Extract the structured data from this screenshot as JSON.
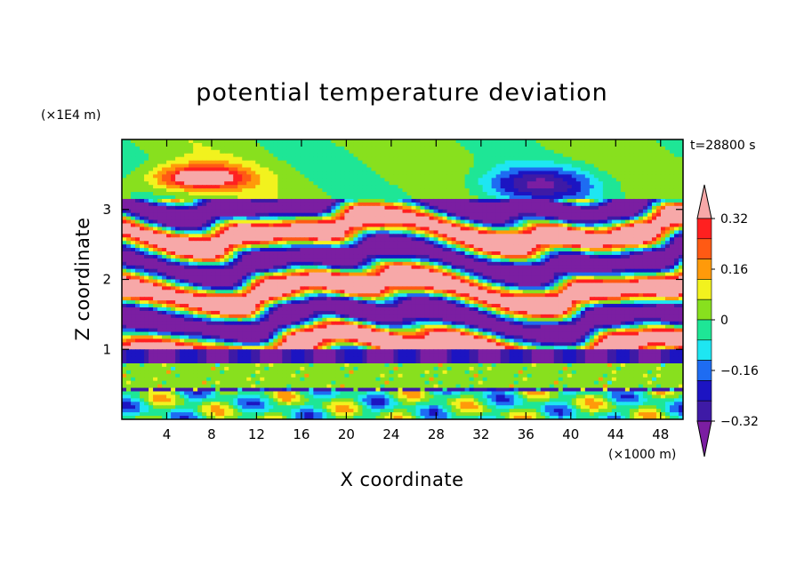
{
  "chart_data": {
    "type": "heatmap",
    "title": "potential temperature deviation",
    "time_label": "t=28800 s",
    "xlabel": "X coordinate",
    "ylabel": "Z coordinate",
    "x_unit": "(×1000 m)",
    "y_unit": "(×1E4 m)",
    "x_ticks": [
      4,
      8,
      12,
      16,
      20,
      24,
      28,
      32,
      36,
      40,
      44,
      48
    ],
    "y_ticks": [
      1,
      2,
      3
    ],
    "xlim": [
      0,
      50
    ],
    "ylim": [
      0,
      4
    ],
    "colorbar": {
      "extend": "both",
      "levels": [
        -0.4,
        -0.32,
        -0.24,
        -0.16,
        -0.08,
        0,
        0.08,
        0.16,
        0.24,
        0.32,
        0.4
      ],
      "colors": [
        "#7b1ea2",
        "#3e1aa6",
        "#1c14c2",
        "#1e6cf2",
        "#1ee6f2",
        "#1ee696",
        "#88e01e",
        "#f2f21e",
        "#ff9a0a",
        "#ff5a14",
        "#ff2020",
        "#f7a8a8"
      ],
      "tick_labels": [
        "0.32",
        "0.16",
        "0",
        "−0.16",
        "−0.32"
      ],
      "tick_values": [
        0.32,
        0.16,
        0,
        -0.16,
        -0.32
      ]
    },
    "grid": false
  }
}
